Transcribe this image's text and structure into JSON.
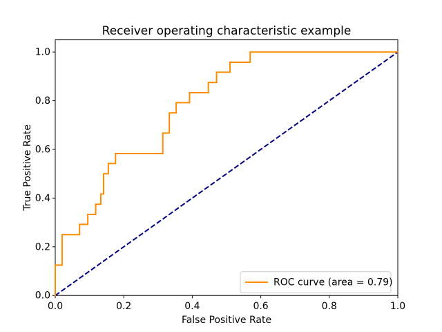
{
  "figure": {
    "background": "#ffffff",
    "spine_color": "#000000",
    "legend": {
      "border_color": "#cccccc",
      "fill": "#ffffff"
    }
  },
  "chart_data": {
    "type": "line",
    "title": "Receiver operating characteristic example",
    "xlabel": "False Positive Rate",
    "ylabel": "True Positive Rate",
    "xlim": [
      0.0,
      1.0
    ],
    "ylim": [
      0.0,
      1.05
    ],
    "x_ticks": [
      "0.0",
      "0.2",
      "0.4",
      "0.6",
      "0.8",
      "1.0"
    ],
    "y_ticks": [
      "0.0",
      "0.2",
      "0.4",
      "0.6",
      "0.8",
      "1.0"
    ],
    "grid": false,
    "legend_position": "lower right",
    "auc": 0.79,
    "series": [
      {
        "name": "ROC curve (area = 0.79)",
        "color": "#ff8c00",
        "style": "solid",
        "linewidth": 2,
        "points": [
          [
            0.0,
            0.0
          ],
          [
            0.0,
            0.125
          ],
          [
            0.02,
            0.125
          ],
          [
            0.02,
            0.25
          ],
          [
            0.071,
            0.25
          ],
          [
            0.071,
            0.292
          ],
          [
            0.095,
            0.292
          ],
          [
            0.095,
            0.333
          ],
          [
            0.118,
            0.333
          ],
          [
            0.118,
            0.375
          ],
          [
            0.133,
            0.375
          ],
          [
            0.133,
            0.417
          ],
          [
            0.141,
            0.417
          ],
          [
            0.141,
            0.5
          ],
          [
            0.155,
            0.5
          ],
          [
            0.155,
            0.542
          ],
          [
            0.176,
            0.542
          ],
          [
            0.176,
            0.583
          ],
          [
            0.314,
            0.583
          ],
          [
            0.314,
            0.667
          ],
          [
            0.333,
            0.667
          ],
          [
            0.333,
            0.75
          ],
          [
            0.353,
            0.75
          ],
          [
            0.353,
            0.792
          ],
          [
            0.392,
            0.792
          ],
          [
            0.392,
            0.833
          ],
          [
            0.447,
            0.833
          ],
          [
            0.447,
            0.875
          ],
          [
            0.471,
            0.875
          ],
          [
            0.471,
            0.917
          ],
          [
            0.51,
            0.917
          ],
          [
            0.51,
            0.958
          ],
          [
            0.569,
            0.958
          ],
          [
            0.569,
            1.0
          ],
          [
            1.0,
            1.0
          ]
        ]
      },
      {
        "name": "diagonal",
        "color": "#000080",
        "style": "dashed",
        "linewidth": 2,
        "points": [
          [
            0.0,
            0.0
          ],
          [
            1.0,
            1.0
          ]
        ]
      }
    ]
  }
}
